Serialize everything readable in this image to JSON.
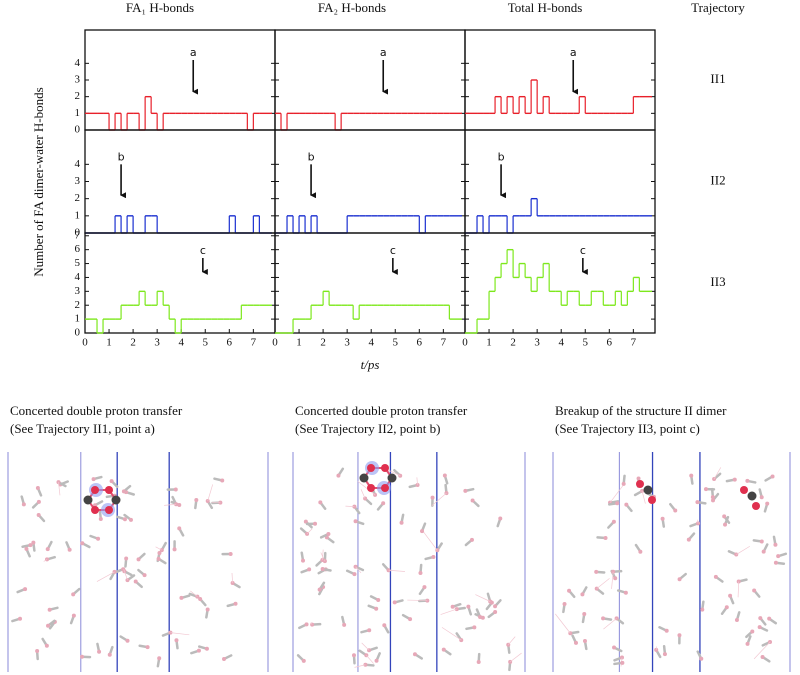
{
  "column_titles": [
    "FA₁ H-bonds",
    "FA₂ H-bonds",
    "Total H-bonds",
    "Trajectory"
  ],
  "row_labels": [
    "II1",
    "II2",
    "II3"
  ],
  "y_label": "Number of FA dimer-water H-bonds",
  "x_label": "t/ps",
  "captions": [
    [
      "Concerted double proton transfer",
      "(See Trajectory II1, point a)"
    ],
    [
      "Concerted double proton transfer",
      "(See Trajectory II2, point b)"
    ],
    [
      "Breakup of the structure II dimer",
      "(See Trajectory II3, point c)"
    ]
  ],
  "chart_data": [
    {
      "type": "line",
      "step": true,
      "xlim": [
        0,
        7.9
      ],
      "ylim": [
        0,
        6
      ],
      "yticks": [
        0,
        1,
        2,
        3,
        4
      ],
      "x": [
        0,
        0.25,
        0.5,
        0.75,
        1,
        1.25,
        1.5,
        1.75,
        2,
        2.25,
        2.5,
        2.75,
        3,
        3.25,
        3.5,
        3.75,
        4,
        4.25,
        4.5,
        4.75,
        5,
        5.25,
        5.5,
        5.75,
        6,
        6.25,
        6.5,
        6.75,
        7,
        7.25
      ],
      "series": [
        {
          "color": "#e8202a",
          "values": [
            1,
            1,
            1,
            1,
            0,
            1,
            0,
            1,
            1,
            0,
            2,
            1,
            0,
            1,
            1,
            1,
            1,
            1,
            1,
            1,
            1,
            1,
            1,
            1,
            1,
            1,
            1,
            0,
            1,
            1
          ]
        }
      ],
      "annotation": {
        "text": "a",
        "x": 4.5,
        "y": 4.2,
        "arrow_to": 2.3
      }
    },
    {
      "type": "line",
      "step": true,
      "xlim": [
        0,
        7.9
      ],
      "ylim": [
        0,
        6
      ],
      "yticks": [
        0,
        1,
        2,
        3,
        4
      ],
      "x": [
        0,
        0.25,
        0.5,
        0.75,
        1,
        1.25,
        1.5,
        1.75,
        2,
        2.25,
        2.5,
        2.75,
        3,
        3.25,
        3.5,
        3.75,
        4,
        4.25,
        4.5,
        4.75,
        5,
        5.25,
        5.5,
        5.75,
        6,
        6.25,
        6.5,
        6.75,
        7,
        7.25
      ],
      "series": [
        {
          "color": "#e8202a",
          "values": [
            1,
            0,
            1,
            1,
            1,
            1,
            1,
            1,
            1,
            1,
            0,
            1,
            1,
            1,
            1,
            1,
            1,
            1,
            1,
            1,
            1,
            1,
            1,
            1,
            1,
            1,
            1,
            1,
            1,
            1
          ]
        }
      ],
      "annotation": {
        "text": "a",
        "x": 4.5,
        "y": 4.2,
        "arrow_to": 2.3
      }
    },
    {
      "type": "line",
      "step": true,
      "xlim": [
        0,
        7.9
      ],
      "ylim": [
        0,
        6
      ],
      "yticks": [
        0,
        1,
        2,
        3,
        4
      ],
      "x": [
        0,
        0.25,
        0.5,
        0.75,
        1,
        1.25,
        1.5,
        1.75,
        2,
        2.25,
        2.5,
        2.75,
        3,
        3.25,
        3.5,
        3.75,
        4,
        4.25,
        4.5,
        4.75,
        5,
        5.25,
        5.5,
        5.75,
        6,
        6.25,
        6.5,
        6.75,
        7,
        7.25
      ],
      "series": [
        {
          "color": "#e8202a",
          "values": [
            1,
            1,
            1,
            1,
            1,
            2,
            1,
            2,
            1,
            2,
            1,
            3,
            1,
            2,
            1,
            1,
            1,
            1,
            1,
            2,
            1,
            1,
            1,
            1,
            1,
            1,
            1,
            1,
            2,
            2
          ]
        }
      ],
      "annotation": {
        "text": "a",
        "x": 4.5,
        "y": 4.2,
        "arrow_to": 2.3
      }
    },
    {
      "type": "line",
      "step": true,
      "xlim": [
        0,
        7.9
      ],
      "ylim": [
        0,
        6
      ],
      "yticks": [
        0,
        1,
        2,
        3,
        4
      ],
      "x": [
        0,
        0.25,
        0.5,
        0.75,
        1,
        1.25,
        1.5,
        1.75,
        2,
        2.25,
        2.5,
        2.75,
        3,
        3.25,
        3.5,
        3.75,
        4,
        4.25,
        4.5,
        4.75,
        5,
        5.25,
        5.5,
        5.75,
        6,
        6.25,
        6.5,
        6.75,
        7,
        7.25
      ],
      "series": [
        {
          "color": "#1a2fd0",
          "values": [
            0,
            0,
            0,
            0,
            0,
            1,
            0,
            1,
            0,
            0,
            1,
            1,
            0,
            0,
            0,
            0,
            0,
            0,
            0,
            0,
            0,
            0,
            0,
            0,
            1,
            0,
            0,
            0,
            1,
            0
          ]
        }
      ],
      "annotation": {
        "text": "b",
        "x": 1.5,
        "y": 4.0,
        "arrow_to": 2.2
      }
    },
    {
      "type": "line",
      "step": true,
      "xlim": [
        0,
        7.9
      ],
      "ylim": [
        0,
        6
      ],
      "yticks": [
        0,
        1,
        2,
        3,
        4
      ],
      "x": [
        0,
        0.25,
        0.5,
        0.75,
        1,
        1.25,
        1.5,
        1.75,
        2,
        2.25,
        2.5,
        2.75,
        3,
        3.25,
        3.5,
        3.75,
        4,
        4.25,
        4.5,
        4.75,
        5,
        5.25,
        5.5,
        5.75,
        6,
        6.25,
        6.5,
        6.75,
        7,
        7.25
      ],
      "series": [
        {
          "color": "#1a2fd0",
          "values": [
            0,
            0,
            1,
            0,
            1,
            0,
            1,
            0,
            0,
            0,
            0,
            0,
            1,
            1,
            1,
            1,
            1,
            1,
            1,
            1,
            1,
            1,
            1,
            1,
            0,
            1,
            1,
            1,
            1,
            1
          ]
        }
      ],
      "annotation": {
        "text": "b",
        "x": 1.5,
        "y": 4.0,
        "arrow_to": 2.2
      }
    },
    {
      "type": "line",
      "step": true,
      "xlim": [
        0,
        7.9
      ],
      "ylim": [
        0,
        6
      ],
      "yticks": [
        0,
        1,
        2,
        3,
        4
      ],
      "x": [
        0,
        0.25,
        0.5,
        0.75,
        1,
        1.25,
        1.5,
        1.75,
        2,
        2.25,
        2.5,
        2.75,
        3,
        3.25,
        3.5,
        3.75,
        4,
        4.25,
        4.5,
        4.75,
        5,
        5.25,
        5.5,
        5.75,
        6,
        6.25,
        6.5,
        6.75,
        7,
        7.25
      ],
      "series": [
        {
          "color": "#1a2fd0",
          "values": [
            0,
            0,
            1,
            0,
            1,
            1,
            1,
            0,
            1,
            1,
            1,
            2,
            1,
            1,
            1,
            1,
            1,
            1,
            1,
            1,
            1,
            1,
            1,
            1,
            1,
            1,
            1,
            1,
            1,
            1
          ]
        }
      ],
      "annotation": {
        "text": "b",
        "x": 1.5,
        "y": 4.0,
        "arrow_to": 2.2
      }
    },
    {
      "type": "line",
      "step": true,
      "xlim": [
        0,
        7.9
      ],
      "ylim": [
        0,
        7.2
      ],
      "yticks": [
        0,
        1,
        2,
        3,
        4,
        5,
        6,
        7
      ],
      "xticks": [
        0,
        1,
        2,
        3,
        4,
        5,
        6,
        7
      ],
      "x": [
        0,
        0.25,
        0.5,
        0.75,
        1,
        1.25,
        1.5,
        1.75,
        2,
        2.25,
        2.5,
        2.75,
        3,
        3.25,
        3.5,
        3.75,
        4,
        4.25,
        4.5,
        4.75,
        5,
        5.25,
        5.5,
        5.75,
        6,
        6.25,
        6.5,
        6.75,
        7,
        7.25
      ],
      "series": [
        {
          "color": "#7de81c",
          "values": [
            1,
            1,
            0,
            1,
            1,
            1,
            2,
            2,
            2,
            3,
            2,
            2,
            3,
            2,
            1,
            0,
            1,
            1,
            1,
            1,
            1,
            1,
            1,
            1,
            1,
            1,
            2,
            2,
            2,
            2
          ]
        }
      ],
      "annotation": {
        "text": "c",
        "x": 4.9,
        "y": 5.4,
        "arrow_to": 4.4
      }
    },
    {
      "type": "line",
      "step": true,
      "xlim": [
        0,
        7.9
      ],
      "ylim": [
        0,
        7.2
      ],
      "yticks": [
        0,
        1,
        2,
        3,
        4,
        5,
        6,
        7
      ],
      "xticks": [
        0,
        1,
        2,
        3,
        4,
        5,
        6,
        7
      ],
      "x": [
        0,
        0.25,
        0.5,
        0.75,
        1,
        1.25,
        1.5,
        1.75,
        2,
        2.25,
        2.5,
        2.75,
        3,
        3.25,
        3.5,
        3.75,
        4,
        4.25,
        4.5,
        4.75,
        5,
        5.25,
        5.5,
        5.75,
        6,
        6.25,
        6.5,
        6.75,
        7,
        7.25
      ],
      "series": [
        {
          "color": "#7de81c",
          "values": [
            0,
            0,
            0,
            1,
            1,
            1,
            2,
            2,
            3,
            2,
            2,
            2,
            2,
            1,
            2,
            2,
            2,
            2,
            2,
            2,
            2,
            2,
            2,
            2,
            2,
            2,
            2,
            2,
            2,
            1
          ]
        }
      ],
      "annotation": {
        "text": "c",
        "x": 4.9,
        "y": 5.4,
        "arrow_to": 4.4
      }
    },
    {
      "type": "line",
      "step": true,
      "xlim": [
        0,
        7.9
      ],
      "ylim": [
        0,
        7.2
      ],
      "yticks": [
        0,
        1,
        2,
        3,
        4,
        5,
        6,
        7
      ],
      "xticks": [
        0,
        1,
        2,
        3,
        4,
        5,
        6,
        7
      ],
      "x": [
        0,
        0.25,
        0.5,
        0.75,
        1,
        1.25,
        1.5,
        1.75,
        2,
        2.25,
        2.5,
        2.75,
        3,
        3.25,
        3.5,
        3.75,
        4,
        4.25,
        4.5,
        4.75,
        5,
        5.25,
        5.5,
        5.75,
        6,
        6.25,
        6.5,
        6.75,
        7,
        7.25
      ],
      "series": [
        {
          "color": "#7de81c",
          "values": [
            0,
            0,
            1,
            1,
            3,
            4,
            5,
            6,
            4,
            5,
            4,
            3,
            4,
            5,
            3,
            3,
            2,
            3,
            3,
            2,
            2,
            3,
            3,
            2,
            2,
            3,
            2,
            3,
            4,
            3
          ]
        }
      ],
      "annotation": {
        "text": "c",
        "x": 4.9,
        "y": 5.4,
        "arrow_to": 4.4
      }
    }
  ]
}
